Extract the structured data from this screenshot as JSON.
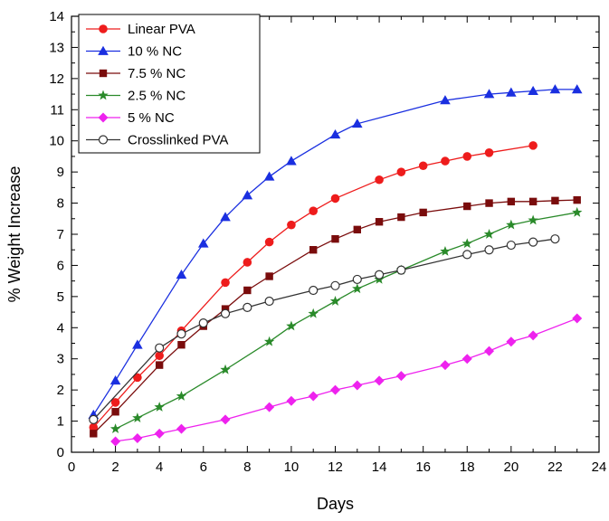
{
  "chart_data": {
    "type": "line",
    "title": "",
    "xlabel": "Days",
    "ylabel": "% Weight Increase",
    "xlim": [
      0,
      24
    ],
    "ylim": [
      0,
      14
    ],
    "x_ticks": [
      0,
      2,
      4,
      6,
      8,
      10,
      12,
      14,
      16,
      18,
      20,
      22,
      24
    ],
    "y_ticks": [
      0,
      1,
      2,
      3,
      4,
      5,
      6,
      7,
      8,
      9,
      10,
      11,
      12,
      13,
      14
    ],
    "grid": false,
    "legend_position": "top-left",
    "series": [
      {
        "name": "Linear PVA",
        "color": "#ee1c1c",
        "marker": "circle",
        "points": [
          [
            1,
            0.8
          ],
          [
            2,
            1.6
          ],
          [
            3,
            2.4
          ],
          [
            4,
            3.1
          ],
          [
            5,
            3.9
          ],
          [
            7,
            5.45
          ],
          [
            8,
            6.1
          ],
          [
            9,
            6.75
          ],
          [
            10,
            7.3
          ],
          [
            11,
            7.75
          ],
          [
            12,
            8.15
          ],
          [
            14,
            8.75
          ],
          [
            15,
            9.0
          ],
          [
            16,
            9.2
          ],
          [
            17,
            9.35
          ],
          [
            18,
            9.5
          ],
          [
            19,
            9.62
          ],
          [
            21,
            9.85
          ]
        ]
      },
      {
        "name": "10 % NC",
        "color": "#1a2fe0",
        "marker": "triangle",
        "points": [
          [
            1,
            1.2
          ],
          [
            2,
            2.3
          ],
          [
            3,
            3.45
          ],
          [
            5,
            5.7
          ],
          [
            6,
            6.7
          ],
          [
            7,
            7.55
          ],
          [
            8,
            8.25
          ],
          [
            9,
            8.85
          ],
          [
            10,
            9.35
          ],
          [
            12,
            10.2
          ],
          [
            13,
            10.55
          ],
          [
            17,
            11.3
          ],
          [
            19,
            11.5
          ],
          [
            20,
            11.55
          ],
          [
            21,
            11.6
          ],
          [
            22,
            11.65
          ],
          [
            23,
            11.65
          ]
        ]
      },
      {
        "name": "7.5 % NC",
        "color": "#7a0c0c",
        "marker": "square",
        "points": [
          [
            1,
            0.6
          ],
          [
            2,
            1.3
          ],
          [
            4,
            2.8
          ],
          [
            5,
            3.45
          ],
          [
            6,
            4.05
          ],
          [
            7,
            4.6
          ],
          [
            8,
            5.2
          ],
          [
            9,
            5.65
          ],
          [
            11,
            6.5
          ],
          [
            12,
            6.85
          ],
          [
            13,
            7.15
          ],
          [
            14,
            7.4
          ],
          [
            15,
            7.55
          ],
          [
            16,
            7.7
          ],
          [
            18,
            7.9
          ],
          [
            19,
            8.0
          ],
          [
            20,
            8.05
          ],
          [
            21,
            8.05
          ],
          [
            22,
            8.08
          ],
          [
            23,
            8.1
          ]
        ]
      },
      {
        "name": "2.5 % NC",
        "color": "#2a8a2a",
        "marker": "star",
        "points": [
          [
            2,
            0.75
          ],
          [
            3,
            1.1
          ],
          [
            4,
            1.45
          ],
          [
            5,
            1.8
          ],
          [
            7,
            2.65
          ],
          [
            9,
            3.55
          ],
          [
            10,
            4.05
          ],
          [
            11,
            4.45
          ],
          [
            12,
            4.85
          ],
          [
            13,
            5.25
          ],
          [
            14,
            5.55
          ],
          [
            15,
            5.85
          ],
          [
            17,
            6.45
          ],
          [
            18,
            6.7
          ],
          [
            19,
            7.0
          ],
          [
            20,
            7.3
          ],
          [
            21,
            7.45
          ],
          [
            23,
            7.7
          ]
        ]
      },
      {
        "name": "5 % NC",
        "color": "#ee22ee",
        "marker": "diamond",
        "points": [
          [
            2,
            0.35
          ],
          [
            3,
            0.45
          ],
          [
            4,
            0.6
          ],
          [
            5,
            0.75
          ],
          [
            7,
            1.05
          ],
          [
            9,
            1.45
          ],
          [
            10,
            1.65
          ],
          [
            11,
            1.8
          ],
          [
            12,
            2.0
          ],
          [
            13,
            2.15
          ],
          [
            14,
            2.3
          ],
          [
            15,
            2.45
          ],
          [
            17,
            2.8
          ],
          [
            18,
            3.0
          ],
          [
            19,
            3.25
          ],
          [
            20,
            3.55
          ],
          [
            21,
            3.75
          ],
          [
            23,
            4.3
          ]
        ]
      },
      {
        "name": "Crosslinked PVA",
        "color": "#333333",
        "marker": "open-circle",
        "points": [
          [
            1,
            1.05
          ],
          [
            4,
            3.35
          ],
          [
            5,
            3.8
          ],
          [
            6,
            4.15
          ],
          [
            7,
            4.45
          ],
          [
            8,
            4.65
          ],
          [
            9,
            4.85
          ],
          [
            11,
            5.2
          ],
          [
            12,
            5.35
          ],
          [
            13,
            5.55
          ],
          [
            14,
            5.7
          ],
          [
            15,
            5.85
          ],
          [
            18,
            6.35
          ],
          [
            19,
            6.5
          ],
          [
            20,
            6.65
          ],
          [
            21,
            6.75
          ],
          [
            22,
            6.85
          ]
        ]
      }
    ]
  }
}
